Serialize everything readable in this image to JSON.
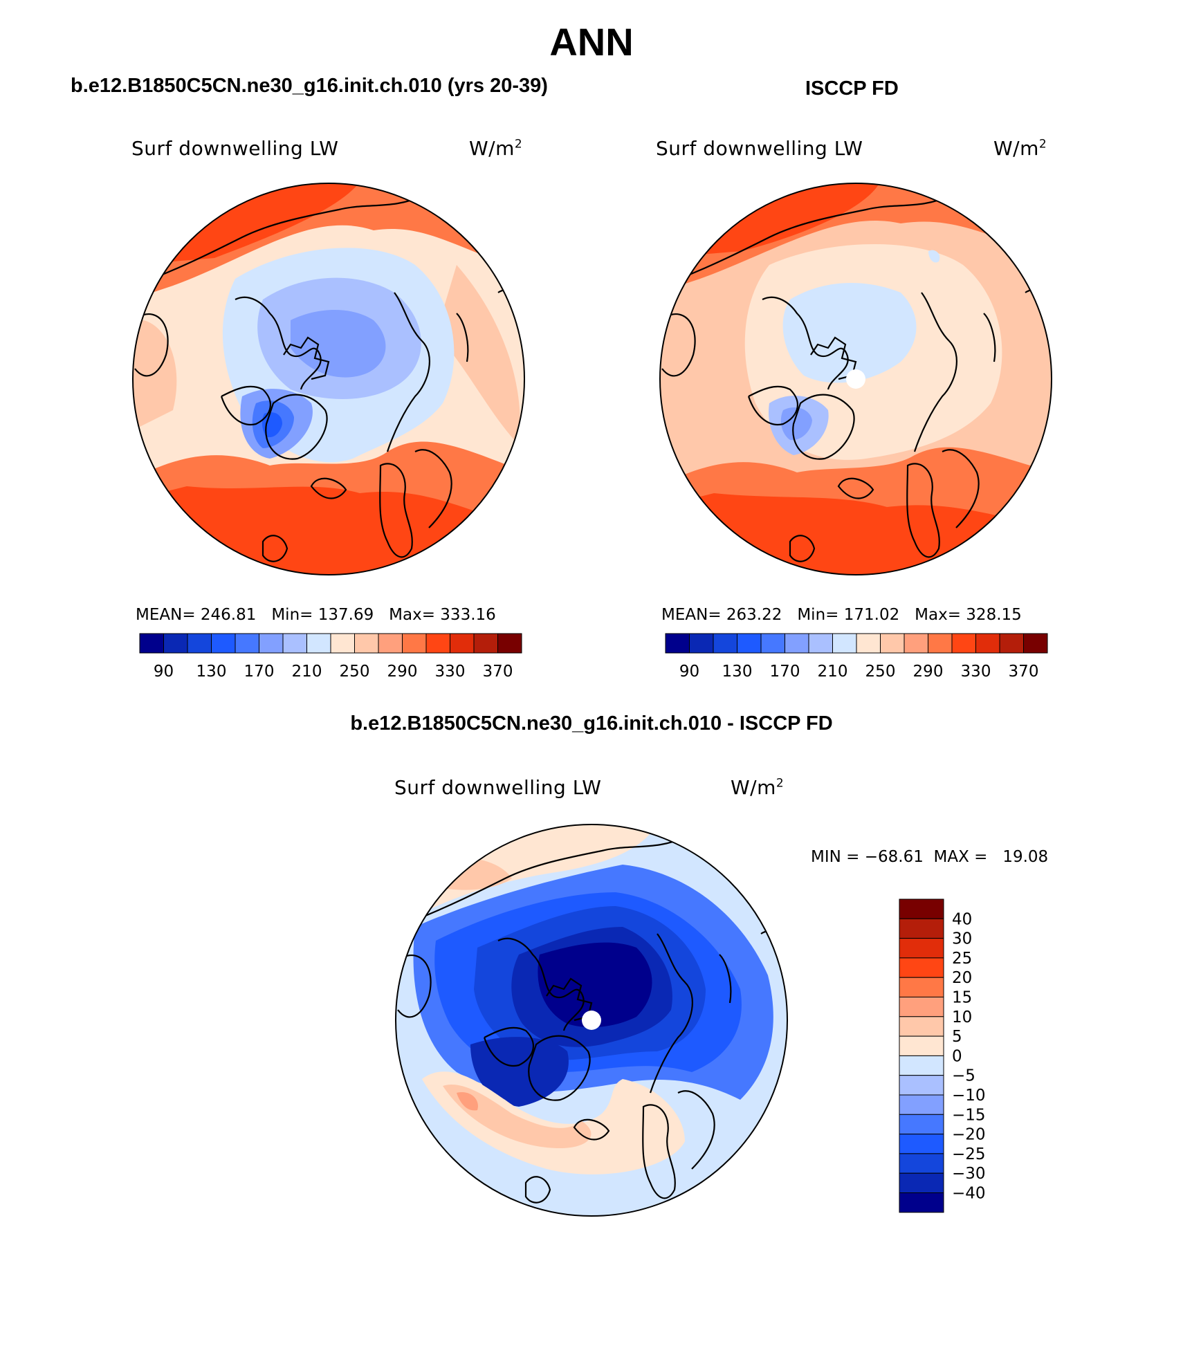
{
  "title": "ANN",
  "panels": [
    {
      "title": "b.e12.B1850C5CN.ne30_g16.init.ch.010 (yrs 20-39)",
      "variable": "Surf downwelling LW",
      "units": "W/m",
      "units_sup": "2",
      "mean_label": "MEAN=",
      "mean": "246.81",
      "min_label": "Min=",
      "min": "137.69",
      "max_label": "Max=",
      "max": "333.16"
    },
    {
      "title": "ISCCP FD",
      "variable": "Surf downwelling LW",
      "units": "W/m",
      "units_sup": "2",
      "mean_label": "MEAN=",
      "mean": "263.22",
      "min_label": "Min=",
      "min": "171.02",
      "max_label": "Max=",
      "max": "328.15"
    },
    {
      "title": "b.e12.B1850C5CN.ne30_g16.init.ch.010 - ISCCP FD",
      "variable": "Surf downwelling LW",
      "units": "W/m",
      "units_sup": "2",
      "min_label": "MIN =",
      "min": "−68.61",
      "max_label": "MAX =",
      "max": "19.08"
    }
  ],
  "colorbar_abs": {
    "colors": [
      "#00008c",
      "#0a28b4",
      "#1446dc",
      "#1e5aff",
      "#4678ff",
      "#82a0ff",
      "#aac0ff",
      "#d2e6ff",
      "#ffe6d2",
      "#ffc8aa",
      "#ffa07d",
      "#ff7846",
      "#ff4614",
      "#e12d0a",
      "#b41e0a",
      "#780000"
    ],
    "tick_labels": [
      "90",
      "130",
      "170",
      "210",
      "250",
      "290",
      "330",
      "370"
    ]
  },
  "colorbar_diff": {
    "colors": [
      "#00008c",
      "#0a28b4",
      "#1446dc",
      "#1e5aff",
      "#4678ff",
      "#82a0ff",
      "#aac0ff",
      "#d2e6ff",
      "#ffe6d2",
      "#ffc8aa",
      "#ffa07d",
      "#ff7846",
      "#ff4614",
      "#e12d0a",
      "#b41e0a",
      "#780000"
    ],
    "tick_labels": [
      "−40",
      "−30",
      "−25",
      "−20",
      "−15",
      "−10",
      "−5",
      "0",
      "5",
      "10",
      "15",
      "20",
      "25",
      "30",
      "40"
    ]
  }
}
